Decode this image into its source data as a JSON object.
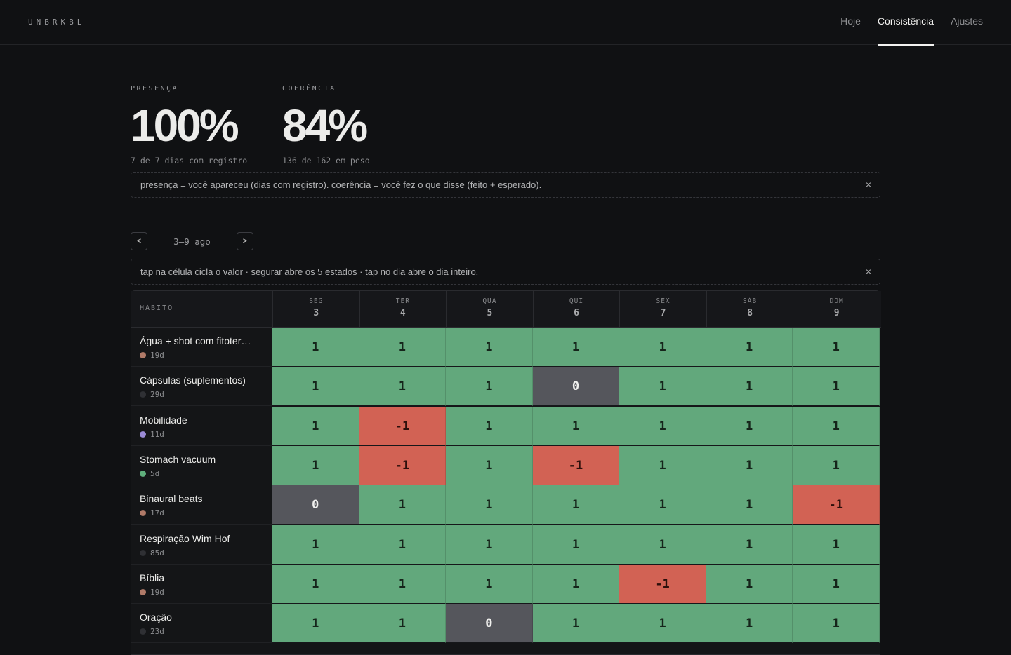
{
  "app": {
    "logo": "UNBRKBL"
  },
  "nav": [
    "Hoje",
    "Consistência",
    "Ajustes"
  ],
  "stats": [
    {
      "label": "PRESENÇA",
      "value": "100%",
      "sub": "7 de 7 dias com registro"
    },
    {
      "label": "COERÊNCIA",
      "value": "84%",
      "sub": "136 de 162 em peso"
    }
  ],
  "notes": {
    "definition": "presença = você apareceu (dias com registro). coerência = você fez o que disse (feito + esperado).",
    "tip": "tap na célula cicla o valor · segurar abre os 5 estados · tap no dia abre o dia inteiro.",
    "close_icon": "×"
  },
  "week": {
    "prev": "<",
    "next": ">",
    "label": "3–9 ago"
  },
  "grid": {
    "habit_header": "HÁBITO",
    "days": [
      {
        "weekday": "SEG",
        "date": "3"
      },
      {
        "weekday": "TER",
        "date": "4"
      },
      {
        "weekday": "QUA",
        "date": "5"
      },
      {
        "weekday": "QUI",
        "date": "6"
      },
      {
        "weekday": "SEX",
        "date": "7"
      },
      {
        "weekday": "SÁB",
        "date": "8"
      },
      {
        "weekday": "DOM",
        "date": "9"
      }
    ],
    "value_colors": {
      "1": "#62a87c",
      "0": "#55565c",
      "-1": "#d26254"
    },
    "rows": [
      {
        "name": "Água + shot com fitoter…",
        "streak": "19d",
        "dot": "#b07a68",
        "values": [
          "1",
          "1",
          "1",
          "1",
          "1",
          "1",
          "1"
        ]
      },
      {
        "name": "Cápsulas (suplementos)",
        "streak": "29d",
        "dot": "#2f3034",
        "values": [
          "1",
          "1",
          "1",
          "0",
          "1",
          "1",
          "1"
        ]
      },
      {
        "name": "Mobilidade",
        "streak": "11d",
        "dot": "#9b8bd6",
        "values": [
          "1",
          "-1",
          "1",
          "1",
          "1",
          "1",
          "1"
        ]
      },
      {
        "name": "Stomach vacuum",
        "streak": "5d",
        "dot": "#5fae7b",
        "values": [
          "1",
          "-1",
          "1",
          "-1",
          "1",
          "1",
          "1"
        ]
      },
      {
        "name": "Binaural beats",
        "streak": "17d",
        "dot": "#b07a68",
        "values": [
          "0",
          "1",
          "1",
          "1",
          "1",
          "1",
          "-1"
        ]
      },
      {
        "name": "Respiração Wim Hof",
        "streak": "85d",
        "dot": "#2f3034",
        "values": [
          "1",
          "1",
          "1",
          "1",
          "1",
          "1",
          "1"
        ]
      },
      {
        "name": "Bíblia",
        "streak": "19d",
        "dot": "#b07a68",
        "values": [
          "1",
          "1",
          "1",
          "1",
          "-1",
          "1",
          "1"
        ]
      },
      {
        "name": "Oração",
        "streak": "23d",
        "dot": "#2f3034",
        "values": [
          "1",
          "1",
          "0",
          "1",
          "1",
          "1",
          "1"
        ]
      }
    ]
  }
}
